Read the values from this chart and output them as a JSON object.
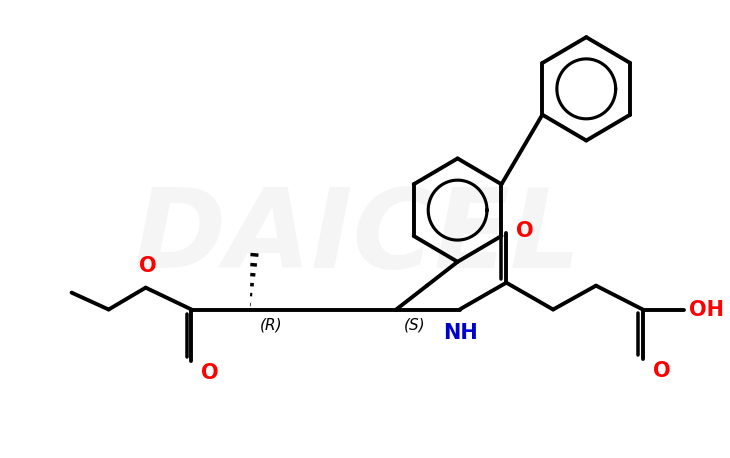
{
  "background_color": "#ffffff",
  "bond_color": "#000000",
  "bond_width": 2.8,
  "O_color": "#ff0000",
  "N_color": "#0000cc",
  "watermark_color": "#cccccc",
  "watermark_text": "DAICEL",
  "watermark_fontsize": 80,
  "watermark_alpha": 0.18,
  "label_R": "(R)",
  "label_S": "(S)",
  "label_NH": "NH",
  "label_O_amide": "O",
  "label_O_ester_single": "O",
  "label_O_ester_double": "O",
  "label_OH": "OH",
  "label_O_cooh": "O"
}
